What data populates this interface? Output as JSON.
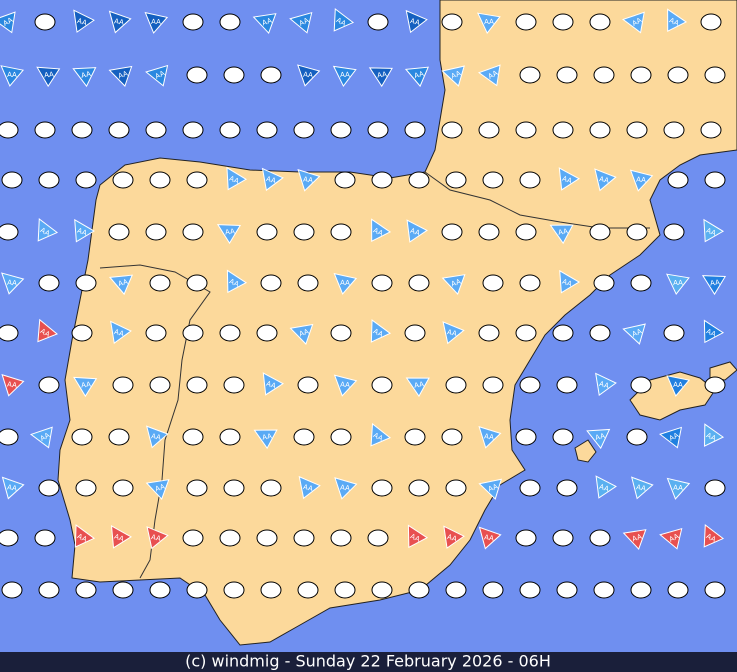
{
  "map": {
    "marker_label": "AA"
  },
  "footer": {
    "text": "(c) windmig - Sunday 22 February 2026 - 06H"
  }
}
